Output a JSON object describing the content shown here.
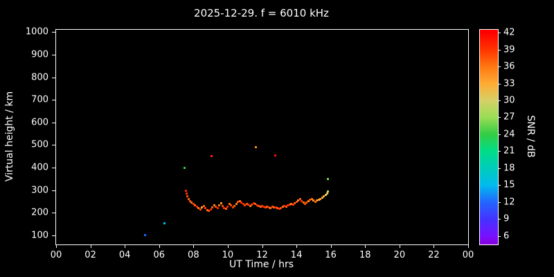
{
  "title": "2025-12-29. f = 6010 kHz",
  "chart_data": {
    "type": "scatter",
    "title": "2025-12-29. f = 6010 kHz",
    "xlabel": "UT Time / hrs",
    "ylabel": "Virtual height / km",
    "xlim": [
      0,
      24
    ],
    "ylim": [
      60,
      1010
    ],
    "grid": false,
    "background": "#000000",
    "axis_color": "#ffffff",
    "point_size": 3,
    "x_ticks": [
      {
        "v": 0,
        "label": "00"
      },
      {
        "v": 2,
        "label": "02"
      },
      {
        "v": 4,
        "label": "04"
      },
      {
        "v": 6,
        "label": "06"
      },
      {
        "v": 8,
        "label": "08"
      },
      {
        "v": 10,
        "label": "10"
      },
      {
        "v": 12,
        "label": "12"
      },
      {
        "v": 14,
        "label": "14"
      },
      {
        "v": 16,
        "label": "16"
      },
      {
        "v": 18,
        "label": "18"
      },
      {
        "v": 20,
        "label": "20"
      },
      {
        "v": 22,
        "label": "22"
      },
      {
        "v": 24,
        "label": "00"
      }
    ],
    "y_ticks": [
      {
        "v": 100,
        "label": "100"
      },
      {
        "v": 200,
        "label": "200"
      },
      {
        "v": 300,
        "label": "300"
      },
      {
        "v": 400,
        "label": "400"
      },
      {
        "v": 500,
        "label": "500"
      },
      {
        "v": 600,
        "label": "600"
      },
      {
        "v": 700,
        "label": "700"
      },
      {
        "v": 800,
        "label": "800"
      },
      {
        "v": 900,
        "label": "900"
      },
      {
        "v": 1000,
        "label": "1000"
      }
    ],
    "points_format": [
      "ut_hours",
      "virtual_height_km",
      "snr_db"
    ],
    "points": [
      [
        5.2,
        100,
        12
      ],
      [
        6.3,
        155,
        15
      ],
      [
        7.5,
        400,
        24
      ],
      [
        9.05,
        450,
        40
      ],
      [
        11.65,
        490,
        35
      ],
      [
        12.75,
        455,
        41
      ],
      [
        15.85,
        350,
        26
      ],
      [
        7.55,
        298,
        40
      ],
      [
        7.6,
        286,
        39
      ],
      [
        7.65,
        272,
        38
      ],
      [
        7.72,
        262,
        37
      ],
      [
        7.8,
        252,
        38
      ],
      [
        7.9,
        244,
        36
      ],
      [
        8.0,
        238,
        39
      ],
      [
        8.1,
        232,
        37
      ],
      [
        8.2,
        228,
        40
      ],
      [
        8.3,
        221,
        36
      ],
      [
        8.4,
        216,
        38
      ],
      [
        8.5,
        224,
        33
      ],
      [
        8.6,
        230,
        37
      ],
      [
        8.7,
        221,
        39
      ],
      [
        8.8,
        212,
        36
      ],
      [
        8.9,
        208,
        38
      ],
      [
        9.0,
        214,
        40
      ],
      [
        9.1,
        224,
        37
      ],
      [
        9.2,
        232,
        35
      ],
      [
        9.3,
        227,
        38
      ],
      [
        9.4,
        221,
        40
      ],
      [
        9.5,
        234,
        36
      ],
      [
        9.6,
        242,
        34
      ],
      [
        9.7,
        231,
        38
      ],
      [
        9.8,
        222,
        39
      ],
      [
        9.9,
        218,
        37
      ],
      [
        10.0,
        227,
        40
      ],
      [
        10.1,
        238,
        36
      ],
      [
        10.2,
        232,
        38
      ],
      [
        10.3,
        224,
        39
      ],
      [
        10.4,
        230,
        37
      ],
      [
        10.5,
        238,
        35
      ],
      [
        10.6,
        247,
        38
      ],
      [
        10.7,
        252,
        36
      ],
      [
        10.8,
        245,
        39
      ],
      [
        10.9,
        238,
        40
      ],
      [
        11.0,
        234,
        38
      ],
      [
        11.1,
        240,
        37
      ],
      [
        11.2,
        236,
        39
      ],
      [
        11.3,
        231,
        36
      ],
      [
        11.4,
        237,
        38
      ],
      [
        11.5,
        242,
        40
      ],
      [
        11.6,
        238,
        37
      ],
      [
        11.7,
        233,
        39
      ],
      [
        11.8,
        229,
        38
      ],
      [
        11.9,
        227,
        36
      ],
      [
        12.0,
        231,
        39
      ],
      [
        12.1,
        228,
        40
      ],
      [
        12.2,
        224,
        38
      ],
      [
        12.3,
        228,
        37
      ],
      [
        12.4,
        224,
        39
      ],
      [
        12.5,
        221,
        36
      ],
      [
        12.6,
        226,
        38
      ],
      [
        12.7,
        224,
        37
      ],
      [
        12.8,
        223,
        40
      ],
      [
        12.9,
        220,
        37
      ],
      [
        13.0,
        218,
        39
      ],
      [
        13.1,
        221,
        38
      ],
      [
        13.2,
        226,
        36
      ],
      [
        13.3,
        230,
        39
      ],
      [
        13.4,
        227,
        37
      ],
      [
        13.5,
        232,
        40
      ],
      [
        13.6,
        236,
        38
      ],
      [
        13.7,
        240,
        36
      ],
      [
        13.8,
        237,
        39
      ],
      [
        13.9,
        242,
        37
      ],
      [
        14.0,
        247,
        38
      ],
      [
        14.1,
        255,
        35
      ],
      [
        14.2,
        260,
        37
      ],
      [
        14.3,
        252,
        39
      ],
      [
        14.4,
        246,
        36
      ],
      [
        14.5,
        240,
        38
      ],
      [
        14.6,
        246,
        37
      ],
      [
        14.7,
        252,
        35
      ],
      [
        14.8,
        258,
        38
      ],
      [
        14.9,
        262,
        36
      ],
      [
        15.0,
        256,
        34
      ],
      [
        15.1,
        250,
        37
      ],
      [
        15.2,
        254,
        35
      ],
      [
        15.3,
        258,
        33
      ],
      [
        15.4,
        262,
        34
      ],
      [
        15.5,
        267,
        32
      ],
      [
        15.6,
        272,
        33
      ],
      [
        15.7,
        278,
        30
      ],
      [
        15.8,
        285,
        31
      ],
      [
        15.82,
        295,
        30
      ]
    ],
    "colorbar": {
      "label": "SNR / dB",
      "min": 4.5,
      "max": 42.5,
      "ticks": [
        6,
        9,
        12,
        15,
        18,
        21,
        24,
        27,
        30,
        33,
        36,
        39,
        42
      ],
      "stops": [
        [
          4.5,
          "#8800dd"
        ],
        [
          6,
          "#7711ff"
        ],
        [
          9,
          "#4433ff"
        ],
        [
          12,
          "#2266ff"
        ],
        [
          15,
          "#00bbee"
        ],
        [
          18,
          "#00ccbb"
        ],
        [
          21,
          "#00dd88"
        ],
        [
          24,
          "#33cc44"
        ],
        [
          27,
          "#99dd55"
        ],
        [
          30,
          "#d6d066"
        ],
        [
          33,
          "#ffaa33"
        ],
        [
          36,
          "#ff7711"
        ],
        [
          39,
          "#ff3300"
        ],
        [
          42,
          "#ff0000"
        ]
      ]
    }
  }
}
